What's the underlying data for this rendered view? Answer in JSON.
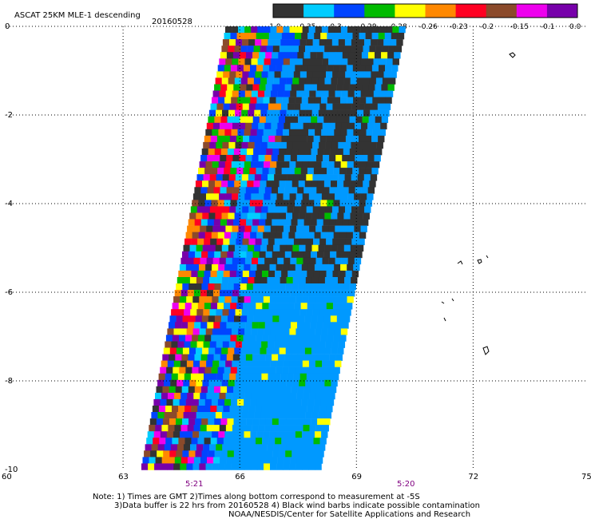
{
  "header": {
    "title": "ASCAT 25KM MLE-1 descending",
    "date": "20160528"
  },
  "colors": {
    "bins": [
      "#333333",
      "#00ccff",
      "#0044ff",
      "#00bb00",
      "#ffff00",
      "#ff8800",
      "#ff0022",
      "#8b4a2b",
      "#ee00ee",
      "#7700aa"
    ],
    "swath_fill": "#0099ff",
    "contamination": "#444444"
  },
  "colorbar": {
    "labels": [
      "-1.0",
      "-0.35",
      "-0.3",
      "-0.29",
      "-0.28",
      "-0.26",
      "-0.23",
      "-0.2",
      "-0.15",
      "-0.1",
      "0.0"
    ]
  },
  "axes": {
    "x_ticks": [
      "60",
      "63",
      "66",
      "69",
      "72",
      "75"
    ],
    "y_ticks": [
      "0",
      "-2",
      "-4",
      "-6",
      "-8",
      "-10"
    ],
    "time_labels": [
      "5:21",
      "5:20"
    ]
  },
  "note": {
    "line1": "Note: 1) Times are GMT 2)Times along bottom correspond to measurement at -5S",
    "line2": "3)Data buffer is 22 hrs from 20160528 4) Black wind barbs indicate possible contamination",
    "line3": "NOAA/NESDIS/Center for Satellite Applications and Research"
  }
}
